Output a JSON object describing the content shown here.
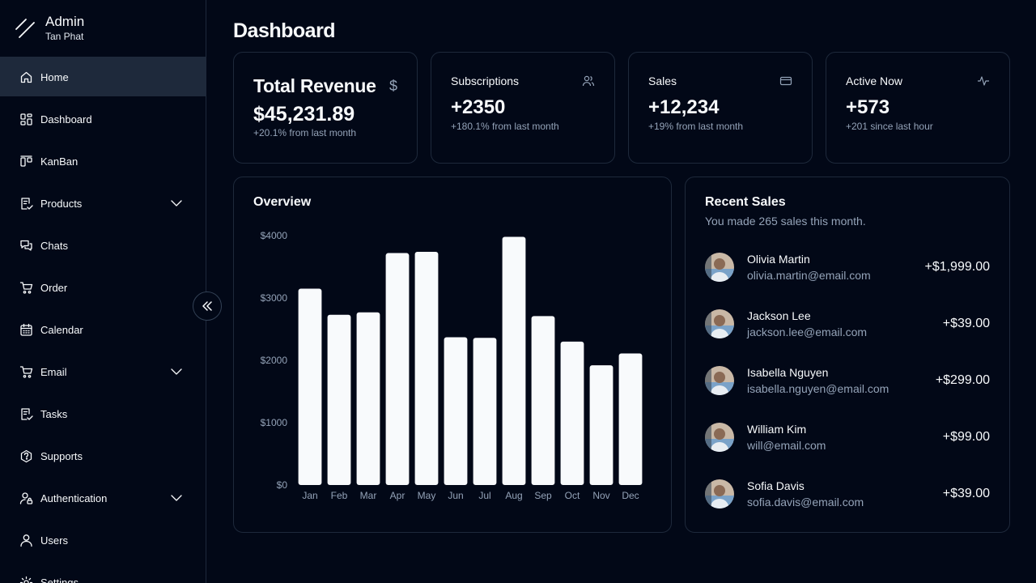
{
  "brand": {
    "title": "Admin",
    "subtitle": "Tan Phat"
  },
  "sidebar": {
    "items": [
      {
        "label": "Home",
        "icon": "home-icon",
        "active": true
      },
      {
        "label": "Dashboard",
        "icon": "dashboard-icon"
      },
      {
        "label": "KanBan",
        "icon": "kanban-icon"
      },
      {
        "label": "Products",
        "icon": "products-icon",
        "expandable": true
      },
      {
        "label": "Chats",
        "icon": "chats-icon"
      },
      {
        "label": "Order",
        "icon": "cart-icon"
      },
      {
        "label": "Calendar",
        "icon": "calendar-icon"
      },
      {
        "label": "Email",
        "icon": "cart-icon",
        "expandable": true
      },
      {
        "label": "Tasks",
        "icon": "tasks-icon"
      },
      {
        "label": "Supports",
        "icon": "help-icon"
      },
      {
        "label": "Authentication",
        "icon": "user-lock-icon",
        "expandable": true
      },
      {
        "label": "Users",
        "icon": "user-icon"
      },
      {
        "label": "Settings",
        "icon": "gear-icon"
      }
    ]
  },
  "page": {
    "title": "Dashboard"
  },
  "kpis": [
    {
      "title": "Total Revenue",
      "icon": "dollar-icon",
      "value": "$45,231.89",
      "sub": "+20.1% from last month"
    },
    {
      "title": "Subscriptions",
      "icon": "users-icon",
      "value": "+2350",
      "sub": "+180.1% from last month"
    },
    {
      "title": "Sales",
      "icon": "credit-card-icon",
      "value": "+12,234",
      "sub": "+19% from last month"
    },
    {
      "title": "Active Now",
      "icon": "activity-icon",
      "value": "+573",
      "sub": "+201 since last hour"
    }
  ],
  "overview": {
    "title": "Overview"
  },
  "chart_data": {
    "type": "bar",
    "categories": [
      "Jan",
      "Feb",
      "Mar",
      "Apr",
      "May",
      "Jun",
      "Jul",
      "Aug",
      "Sep",
      "Oct",
      "Nov",
      "Dec"
    ],
    "values": [
      3150,
      2730,
      2770,
      3720,
      3740,
      2370,
      2360,
      3980,
      2710,
      2300,
      1920,
      2110
    ],
    "ylim": [
      0,
      4000
    ],
    "yticks": [
      "$0",
      "$1000",
      "$2000",
      "$3000",
      "$4000"
    ],
    "bar_color": "#f8fafc",
    "grid": false
  },
  "recent": {
    "title": "Recent Sales",
    "subtitle": "You made 265 sales this month.",
    "sales": [
      {
        "name": "Olivia Martin",
        "email": "olivia.martin@email.com",
        "amount": "+$1,999.00"
      },
      {
        "name": "Jackson Lee",
        "email": "jackson.lee@email.com",
        "amount": "+$39.00"
      },
      {
        "name": "Isabella Nguyen",
        "email": "isabella.nguyen@email.com",
        "amount": "+$299.00"
      },
      {
        "name": "William Kim",
        "email": "will@email.com",
        "amount": "+$99.00"
      },
      {
        "name": "Sofia Davis",
        "email": "sofia.davis@email.com",
        "amount": "+$39.00"
      }
    ]
  },
  "colors": {
    "background": "#020817",
    "border": "#1e293b",
    "muted": "#94a3b8",
    "active": "#1e293b"
  }
}
